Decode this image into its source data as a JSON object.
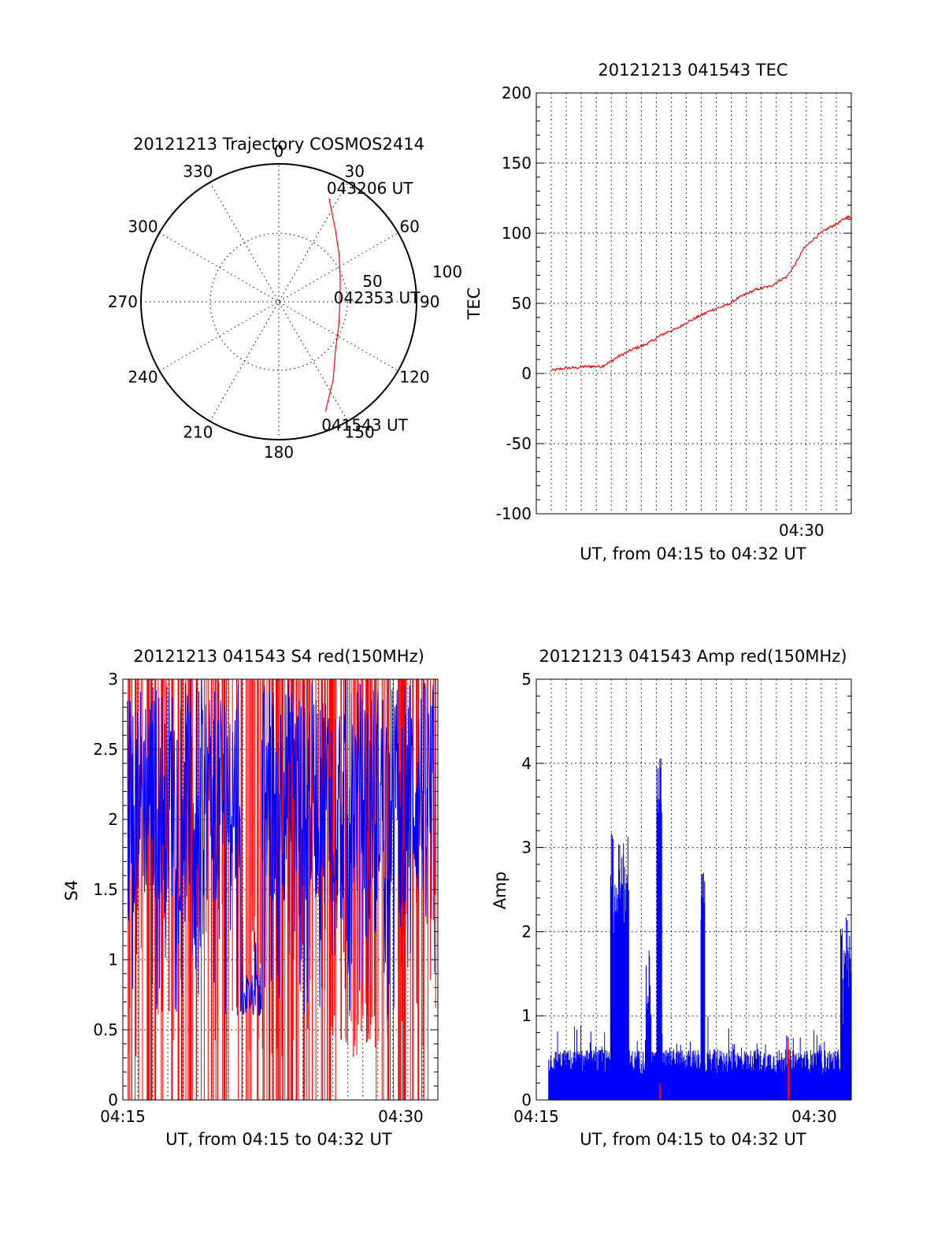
{
  "chart_data": [
    {
      "type": "polar",
      "title": "20121213 Trajectory COSMOS2414",
      "azimuth_labels": [
        "0",
        "30",
        "60",
        "90",
        "120",
        "150",
        "180",
        "210",
        "240",
        "270",
        "300",
        "330"
      ],
      "radius_labels": [
        "50",
        "100"
      ],
      "track_color": "#ff0000",
      "track": [
        {
          "az": 157,
          "el": 12
        },
        {
          "az": 145,
          "el": 28
        },
        {
          "az": 131,
          "el": 41
        },
        {
          "az": 111,
          "el": 48
        },
        {
          "az": 90,
          "el": 50
        },
        {
          "az": 69,
          "el": 47
        },
        {
          "az": 52,
          "el": 40
        },
        {
          "az": 38,
          "el": 30
        },
        {
          "az": 26,
          "el": 15
        }
      ],
      "annotations": [
        {
          "text": "043206 UT",
          "az": 26,
          "el": 15
        },
        {
          "text": "042353 UT",
          "az": 90,
          "el": 50
        },
        {
          "text": "041543 UT",
          "az": 157,
          "el": 12
        }
      ]
    },
    {
      "type": "line",
      "title": "20121213 041543 TEC",
      "ylabel": "TEC",
      "xlabel": "UT, from 04:15 to 04:32 UT",
      "xlim": [
        0,
        1069
      ],
      "ylim": [
        -100,
        200
      ],
      "yticks": [
        "200",
        "150",
        "100",
        "50",
        "0",
        "-50",
        "-100"
      ],
      "xticks": [
        {
          "label": "04:30",
          "t": 900
        }
      ],
      "series": [
        {
          "color": "#ff0000",
          "x": [
            0,
            30,
            60,
            90,
            120,
            150,
            180,
            210,
            240,
            270,
            300,
            330,
            360,
            390,
            420,
            450,
            480,
            510,
            540,
            570,
            600,
            630,
            660,
            690,
            720,
            750,
            780,
            810,
            840,
            870,
            900,
            930,
            960,
            990,
            1020,
            1050,
            1069
          ],
          "y": [
            2,
            3,
            4,
            4,
            5,
            5,
            5,
            8,
            12,
            15,
            18,
            20,
            23,
            27,
            30,
            32,
            36,
            39,
            42,
            45,
            47,
            49,
            53,
            56,
            59,
            61,
            62,
            66,
            69,
            78,
            89,
            95,
            100,
            104,
            107,
            111,
            112
          ]
        }
      ]
    },
    {
      "type": "line",
      "title": "20121213 041543 S4 red(150MHz)",
      "ylabel": "S4",
      "xlabel": "UT, from 04:15 to 04:32 UT",
      "xlim": [
        0,
        1020
      ],
      "ylim": [
        0,
        3
      ],
      "yticks": [
        "3",
        "2.5",
        "2",
        "1.5",
        "1",
        "0.5",
        "0"
      ],
      "xticks": [
        {
          "label": "04:15",
          "t": 0
        },
        {
          "label": "04:30",
          "t": 900
        }
      ],
      "series": [
        {
          "color": "#ff0000"
        },
        {
          "color": "#0000ff"
        }
      ]
    },
    {
      "type": "bar",
      "title": "20121213 041543 Amp red(150MHz)",
      "ylabel": "Amp",
      "xlabel": "UT, from 04:15 to 04:32 UT",
      "xlim": [
        0,
        1020
      ],
      "ylim": [
        0,
        5
      ],
      "yticks": [
        "5",
        "4",
        "3",
        "2",
        "1",
        "0"
      ],
      "xticks": [
        {
          "label": "04:15",
          "t": 0
        },
        {
          "label": "04:30",
          "t": 900
        }
      ],
      "series": [
        {
          "color": "#0000ff"
        },
        {
          "color": "#ff0000"
        }
      ]
    }
  ]
}
